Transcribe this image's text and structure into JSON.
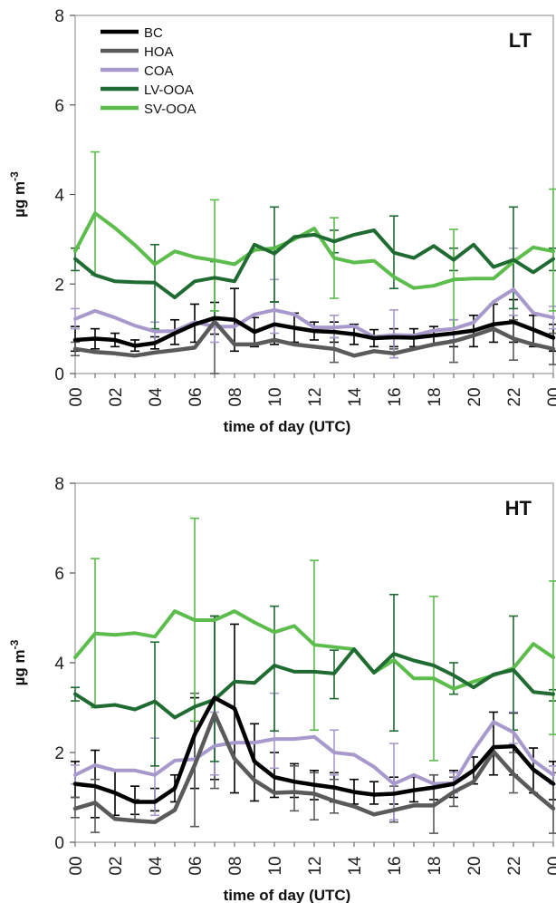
{
  "chart_data": [
    {
      "type": "line",
      "title": "LT",
      "xlabel": "time of day (UTC)",
      "ylabel": "µg m-3",
      "ylabel_base": "µg m",
      "ylabel_sup": "-3",
      "ylim": [
        0,
        8
      ],
      "yticks": [
        0,
        2,
        4,
        6,
        8
      ],
      "xlim": [
        0,
        24
      ],
      "xticks": [
        "00",
        "02",
        "04",
        "06",
        "08",
        "10",
        "12",
        "14",
        "16",
        "18",
        "20",
        "22",
        "00"
      ],
      "x": [
        0,
        1,
        2,
        3,
        4,
        5,
        6,
        7,
        8,
        9,
        10,
        11,
        12,
        13,
        14,
        15,
        16,
        17,
        18,
        19,
        20,
        21,
        22,
        23,
        24
      ],
      "grid": false,
      "legend_position": "top-left",
      "series": [
        {
          "name": "BC",
          "color": "#000000",
          "values": [
            0.75,
            0.78,
            0.75,
            0.62,
            0.68,
            0.9,
            1.1,
            1.24,
            1.2,
            0.93,
            1.1,
            1.02,
            0.95,
            0.93,
            0.88,
            0.79,
            0.81,
            0.8,
            0.85,
            0.9,
            0.96,
            1.1,
            1.15,
            0.98,
            0.8
          ]
        },
        {
          "name": "HOA",
          "color": "#5a5a5a",
          "values": [
            0.55,
            0.48,
            0.45,
            0.4,
            0.47,
            0.52,
            0.58,
            1.16,
            0.65,
            0.65,
            0.75,
            0.65,
            0.6,
            0.55,
            0.4,
            0.5,
            0.45,
            0.55,
            0.65,
            0.72,
            0.85,
            1.0,
            0.78,
            0.65,
            0.55
          ]
        },
        {
          "name": "COA",
          "color": "#a899cc",
          "values": [
            1.22,
            1.4,
            1.25,
            1.07,
            0.94,
            0.95,
            1.15,
            1.05,
            1.05,
            1.32,
            1.42,
            1.32,
            1.03,
            1.03,
            1.06,
            0.82,
            0.86,
            0.85,
            0.96,
            1.0,
            1.14,
            1.6,
            1.88,
            1.35,
            1.25
          ]
        },
        {
          "name": "LV-OOA",
          "color": "#1f6b32",
          "values": [
            2.56,
            2.2,
            2.06,
            2.04,
            2.03,
            1.7,
            2.06,
            2.14,
            2.06,
            2.88,
            2.68,
            3.05,
            3.1,
            2.95,
            3.1,
            3.2,
            2.7,
            2.58,
            2.85,
            2.54,
            2.88,
            2.38,
            2.54,
            2.26,
            2.56
          ]
        },
        {
          "name": "SV-OOA",
          "color": "#5cbd4c",
          "values": [
            2.73,
            3.58,
            3.25,
            2.87,
            2.44,
            2.73,
            2.6,
            2.53,
            2.44,
            2.76,
            2.8,
            3.0,
            3.24,
            2.58,
            2.48,
            2.52,
            2.16,
            1.91,
            1.96,
            2.1,
            2.12,
            2.12,
            2.5,
            2.82,
            2.73
          ]
        }
      ],
      "error_bars": [
        {
          "series": "BC",
          "x": [
            0,
            1,
            2,
            3,
            4,
            5,
            6,
            7,
            8,
            9,
            10,
            11,
            12,
            13,
            14,
            15,
            16,
            17,
            18,
            19,
            20,
            21,
            22,
            23,
            24
          ],
          "low": [
            0.5,
            0.55,
            0.6,
            0.5,
            0.55,
            0.65,
            0.7,
            0.88,
            0.5,
            0.6,
            0.65,
            0.7,
            0.75,
            0.7,
            0.65,
            0.6,
            0.6,
            0.6,
            0.65,
            0.6,
            0.6,
            0.7,
            0.7,
            0.6,
            0.5
          ],
          "high": [
            1.05,
            1.0,
            0.9,
            0.75,
            0.82,
            1.2,
            1.55,
            1.59,
            1.9,
            1.25,
            1.6,
            1.35,
            1.15,
            1.15,
            1.1,
            0.98,
            1.0,
            1.0,
            1.05,
            1.2,
            1.3,
            1.55,
            1.65,
            1.3,
            1.1
          ]
        },
        {
          "series": "HOA",
          "x": [
            0,
            7,
            13,
            16,
            19,
            22,
            24
          ],
          "low": [
            0.4,
            0.0,
            0.25,
            0.35,
            0.25,
            0.3,
            0.2
          ],
          "high": [
            0.7,
            1.2,
            0.8,
            0.55,
            1.2,
            1.2,
            0.9
          ]
        },
        {
          "series": "COA",
          "x": [
            0,
            4,
            7,
            10,
            13,
            16,
            19,
            22,
            24
          ],
          "low": [
            1.0,
            0.7,
            0.7,
            0.9,
            0.8,
            0.35,
            0.75,
            1.3,
            1.0
          ],
          "high": [
            1.45,
            1.15,
            1.4,
            2.1,
            1.3,
            1.42,
            1.2,
            2.8,
            1.5
          ]
        },
        {
          "series": "LV-OOA",
          "x": [
            0,
            4,
            7,
            10,
            13,
            16,
            19,
            22,
            24
          ],
          "low": [
            2.3,
            1.0,
            1.2,
            1.6,
            2.7,
            1.9,
            2.3,
            1.45,
            2.3
          ],
          "high": [
            2.8,
            2.88,
            2.5,
            3.72,
            3.2,
            3.52,
            2.8,
            3.72,
            2.8
          ]
        },
        {
          "series": "SV-OOA",
          "x": [
            1,
            7,
            13,
            19,
            24
          ],
          "low": [
            2.2,
            1.4,
            1.68,
            1.0,
            1.4
          ],
          "high": [
            4.95,
            3.88,
            3.48,
            3.22,
            4.12
          ]
        }
      ]
    },
    {
      "type": "line",
      "title": "HT",
      "xlabel": "time of day (UTC)",
      "ylabel": "µg m-3",
      "ylabel_base": "µg m",
      "ylabel_sup": "-3",
      "ylim": [
        0,
        8
      ],
      "yticks": [
        0,
        2,
        4,
        6,
        8
      ],
      "xlim": [
        0,
        24
      ],
      "xticks": [
        "00",
        "02",
        "04",
        "06",
        "08",
        "10",
        "12",
        "14",
        "16",
        "18",
        "20",
        "22",
        "00"
      ],
      "x": [
        0,
        1,
        2,
        3,
        4,
        5,
        6,
        7,
        8,
        9,
        10,
        11,
        12,
        13,
        14,
        15,
        16,
        17,
        18,
        19,
        20,
        21,
        22,
        23,
        24
      ],
      "grid": false,
      "legend_position": "none",
      "series": [
        {
          "name": "BC",
          "color": "#000000",
          "values": [
            1.3,
            1.25,
            1.1,
            0.9,
            0.9,
            1.2,
            2.4,
            3.22,
            2.98,
            1.8,
            1.45,
            1.35,
            1.28,
            1.22,
            1.12,
            1.06,
            1.08,
            1.16,
            1.22,
            1.3,
            1.6,
            2.12,
            2.14,
            1.62,
            1.3
          ]
        },
        {
          "name": "HOA",
          "color": "#5a5a5a",
          "values": [
            0.75,
            0.88,
            0.52,
            0.48,
            0.45,
            0.72,
            1.72,
            2.86,
            1.86,
            1.38,
            1.1,
            1.12,
            1.08,
            0.92,
            0.8,
            0.62,
            0.72,
            0.82,
            0.82,
            1.12,
            1.35,
            2.02,
            1.52,
            1.12,
            0.75
          ]
        },
        {
          "name": "COA",
          "color": "#a899cc",
          "values": [
            1.5,
            1.72,
            1.6,
            1.6,
            1.5,
            1.82,
            1.85,
            2.15,
            2.22,
            2.22,
            2.3,
            2.3,
            2.35,
            2.0,
            1.95,
            1.68,
            1.3,
            1.5,
            1.3,
            1.32,
            2.05,
            2.68,
            2.45,
            1.82,
            1.5
          ]
        },
        {
          "name": "LV-OOA",
          "color": "#1f6b32",
          "values": [
            3.3,
            3.02,
            3.06,
            2.96,
            3.14,
            2.78,
            3.02,
            3.18,
            3.58,
            3.55,
            3.94,
            3.8,
            3.8,
            3.76,
            4.3,
            3.78,
            4.2,
            4.05,
            3.94,
            3.72,
            3.45,
            3.74,
            3.84,
            3.35,
            3.3
          ]
        },
        {
          "name": "SV-OOA",
          "color": "#5cbd4c",
          "values": [
            4.12,
            4.65,
            4.62,
            4.66,
            4.58,
            5.15,
            4.95,
            4.95,
            5.15,
            4.9,
            4.68,
            4.82,
            4.4,
            4.35,
            4.3,
            3.78,
            4.06,
            3.65,
            3.65,
            3.42,
            3.58,
            3.72,
            3.88,
            4.42,
            4.12
          ]
        }
      ],
      "error_bars": [
        {
          "series": "BC",
          "x": [
            0,
            1,
            2,
            3,
            4,
            5,
            6,
            7,
            8,
            9,
            10,
            11,
            12,
            13,
            14,
            15,
            16,
            17,
            18,
            19,
            20,
            21,
            22,
            23,
            24
          ],
          "low": [
            1.0,
            0.55,
            0.6,
            0.62,
            0.7,
            0.9,
            1.2,
            1.4,
            1.1,
            0.92,
            1.0,
            1.0,
            0.95,
            0.9,
            0.85,
            0.85,
            0.85,
            0.9,
            0.95,
            1.0,
            1.3,
            1.5,
            1.5,
            1.1,
            0.95
          ],
          "high": [
            1.8,
            2.05,
            1.6,
            1.25,
            1.2,
            1.5,
            3.22,
            5.04,
            4.86,
            2.64,
            2.0,
            1.75,
            1.6,
            1.55,
            1.4,
            1.35,
            1.45,
            1.45,
            1.5,
            1.6,
            1.9,
            2.9,
            2.88,
            2.1,
            1.8
          ]
        },
        {
          "series": "HOA",
          "x": [
            0,
            1,
            3,
            6,
            7,
            11,
            12,
            13,
            16,
            18,
            19,
            22,
            24
          ],
          "low": [
            0.55,
            0.22,
            0.5,
            0.35,
            1.2,
            0.7,
            0.5,
            0.65,
            0.45,
            0.2,
            0.8,
            1.1,
            0.2
          ],
          "high": [
            1.0,
            1.4,
            0.95,
            3.32,
            3.16,
            1.7,
            1.55,
            1.4,
            1.25,
            1.5,
            1.45,
            2.0,
            1.55
          ]
        },
        {
          "series": "COA",
          "x": [
            0,
            4,
            7,
            10,
            13,
            16,
            19,
            22,
            24
          ],
          "low": [
            1.3,
            0.6,
            1.5,
            1.65,
            1.5,
            0.5,
            1.1,
            2.2,
            1.3
          ],
          "high": [
            1.72,
            2.32,
            2.9,
            3.32,
            2.5,
            2.2,
            1.55,
            2.9,
            1.7
          ]
        },
        {
          "series": "LV-OOA",
          "x": [
            0,
            4,
            7,
            10,
            13,
            16,
            19,
            22,
            24
          ],
          "low": [
            3.15,
            1.7,
            1.8,
            2.48,
            3.2,
            2.48,
            3.3,
            2.5,
            3.15
          ],
          "high": [
            3.45,
            4.46,
            5.04,
            5.26,
            4.28,
            5.52,
            4.0,
            5.04,
            3.4
          ]
        },
        {
          "series": "SV-OOA",
          "x": [
            1,
            6,
            12,
            18,
            24
          ],
          "low": [
            3.0,
            2.7,
            2.5,
            1.82,
            2.4
          ],
          "high": [
            6.32,
            7.22,
            6.28,
            5.48,
            5.82
          ]
        }
      ]
    }
  ]
}
